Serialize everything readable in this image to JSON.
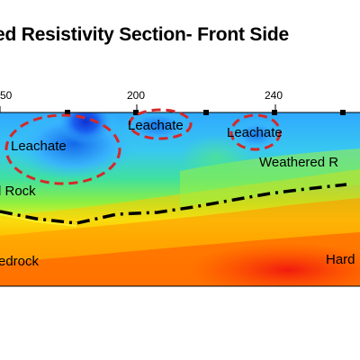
{
  "title": "ed Resistivity Section- Front Side",
  "axis": {
    "ticks": [
      "50",
      "200",
      "240"
    ]
  },
  "labels": {
    "leachate_1": "Leachate",
    "leachate_2": "Leachate",
    "leachate_3": "Leachate",
    "weathered": "Weathered R",
    "rock": "l Rock",
    "bedrock": "edrock",
    "hard": "Hard"
  },
  "colors": {
    "ellipse": "#d62828",
    "boundary": "#000000"
  }
}
